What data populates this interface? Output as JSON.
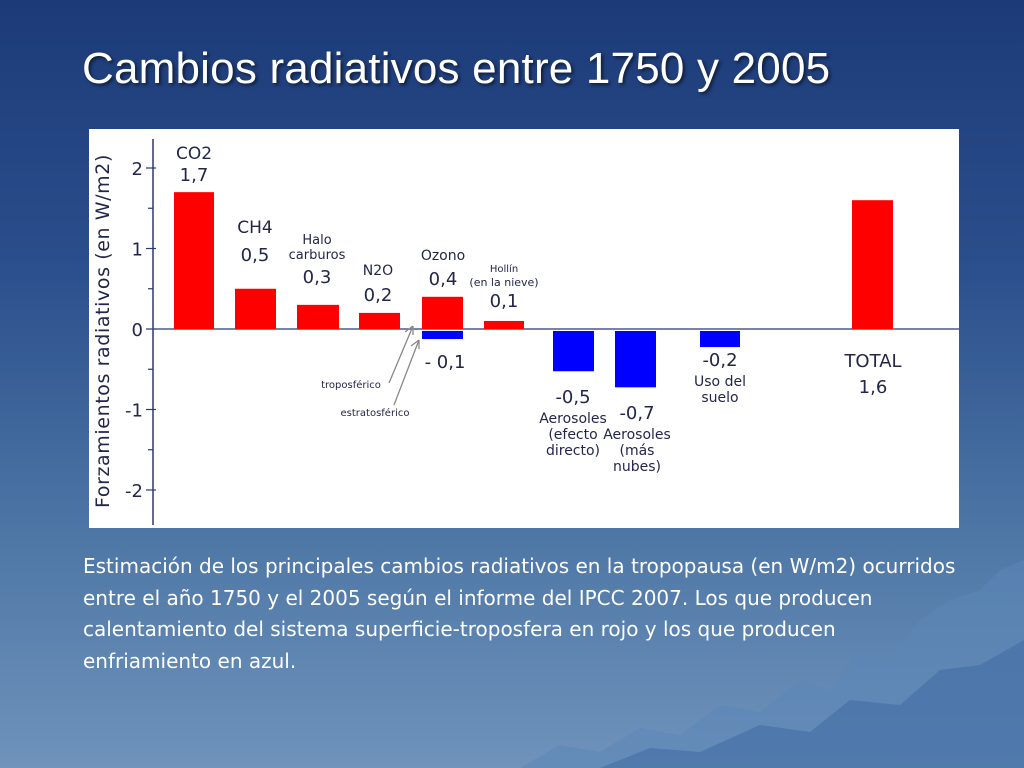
{
  "slide": {
    "title": "Cambios radiativos entre 1750 y 2005",
    "caption": "Estimación de los principales cambios radiativos en la tropopausa (en W/m2) ocurridos entre el año 1750 y el 2005 según el informe del IPCC 2007. Los que producen calentamiento del sistema superficie-troposfera en rojo y los que producen enfriamiento en azul."
  },
  "colors": {
    "warming": "#ff0000",
    "cooling": "#0000ff",
    "background_top": "#1c3a78",
    "background_bottom": "#6f93bb"
  },
  "chart_data": {
    "type": "bar",
    "ylabel": "Forzamientos radiativos (en W/m2)",
    "ylim": [
      -2.3,
      2.2
    ],
    "yticks": [
      "2",
      "1",
      "0",
      "-1",
      "-2"
    ],
    "ytick_values": [
      2,
      1,
      0,
      -1,
      -2
    ],
    "grid": false,
    "series": [
      {
        "label_lines": [
          "CO2",
          "1,7"
        ],
        "value": 1.7,
        "color": "red"
      },
      {
        "label_lines": [
          "CH4",
          "0,5"
        ],
        "value": 0.5,
        "color": "red"
      },
      {
        "label_lines": [
          "Halo",
          "carburos",
          "0,3"
        ],
        "value": 0.3,
        "color": "red"
      },
      {
        "label_lines": [
          "N2O",
          "0,2"
        ],
        "value": 0.2,
        "color": "red"
      },
      {
        "label_lines": [
          "Ozono",
          "0,4"
        ],
        "value": 0.4,
        "color": "red"
      },
      {
        "label_lines": [
          "- 0,1"
        ],
        "value": -0.1,
        "color": "blue"
      },
      {
        "label_lines": [
          "Hollín",
          "(en la nieve)",
          "0,1"
        ],
        "value": 0.1,
        "color": "red"
      },
      {
        "label_lines": [
          "-0,5",
          "Aerosoles",
          "(efecto",
          "directo)"
        ],
        "value": -0.5,
        "color": "blue"
      },
      {
        "label_lines": [
          "-0,7",
          "Aerosoles",
          "(más",
          "nubes)"
        ],
        "value": -0.7,
        "color": "blue"
      },
      {
        "label_lines": [
          "-0,2",
          "Uso del",
          "suelo"
        ],
        "value": -0.2,
        "color": "blue"
      },
      {
        "label_lines": [
          "TOTAL",
          "1,6"
        ],
        "value": 1.6,
        "color": "red"
      }
    ],
    "annotations": [
      "troposférico",
      "estratosférico"
    ]
  }
}
